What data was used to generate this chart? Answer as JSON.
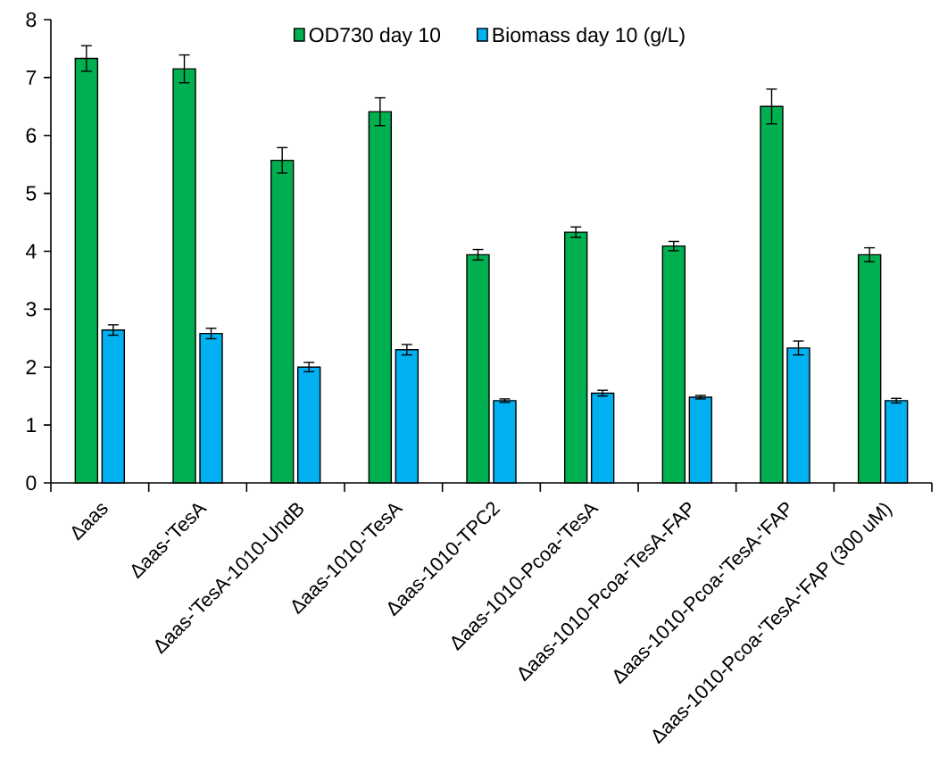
{
  "chart_data": {
    "type": "bar",
    "categories": [
      "Δaas",
      "Δaas-'TesA",
      "Δaas-'TesA-1010-UndB",
      "Δaas-1010-'TesA",
      "Δaas-1010-TPC2",
      "Δaas-1010-Pcoa-'TesA",
      "Δaas-1010-Pcoa-'TesA-FAP",
      "Δaas-1010-Pcoa-'TesA-'FAP",
      "Δaas-1010-Pcoa-'TesA-'FAP (300 uM)"
    ],
    "series": [
      {
        "name": "OD730 day 10",
        "color": "#00b050",
        "values": [
          7.33,
          7.15,
          5.57,
          6.41,
          3.94,
          4.33,
          4.09,
          6.5,
          3.94
        ],
        "errors": [
          0.22,
          0.24,
          0.22,
          0.24,
          0.09,
          0.09,
          0.08,
          0.3,
          0.12
        ]
      },
      {
        "name": "Biomass day 10 (g/L)",
        "color": "#00b0f0",
        "values": [
          2.64,
          2.58,
          2.0,
          2.3,
          1.42,
          1.55,
          1.48,
          2.33,
          1.42
        ],
        "errors": [
          0.09,
          0.09,
          0.08,
          0.09,
          0.03,
          0.05,
          0.03,
          0.12,
          0.04
        ]
      }
    ],
    "ylim": [
      0,
      8
    ],
    "yticks": [
      0,
      1,
      2,
      3,
      4,
      5,
      6,
      7,
      8
    ],
    "grid": false,
    "legend": "top"
  }
}
